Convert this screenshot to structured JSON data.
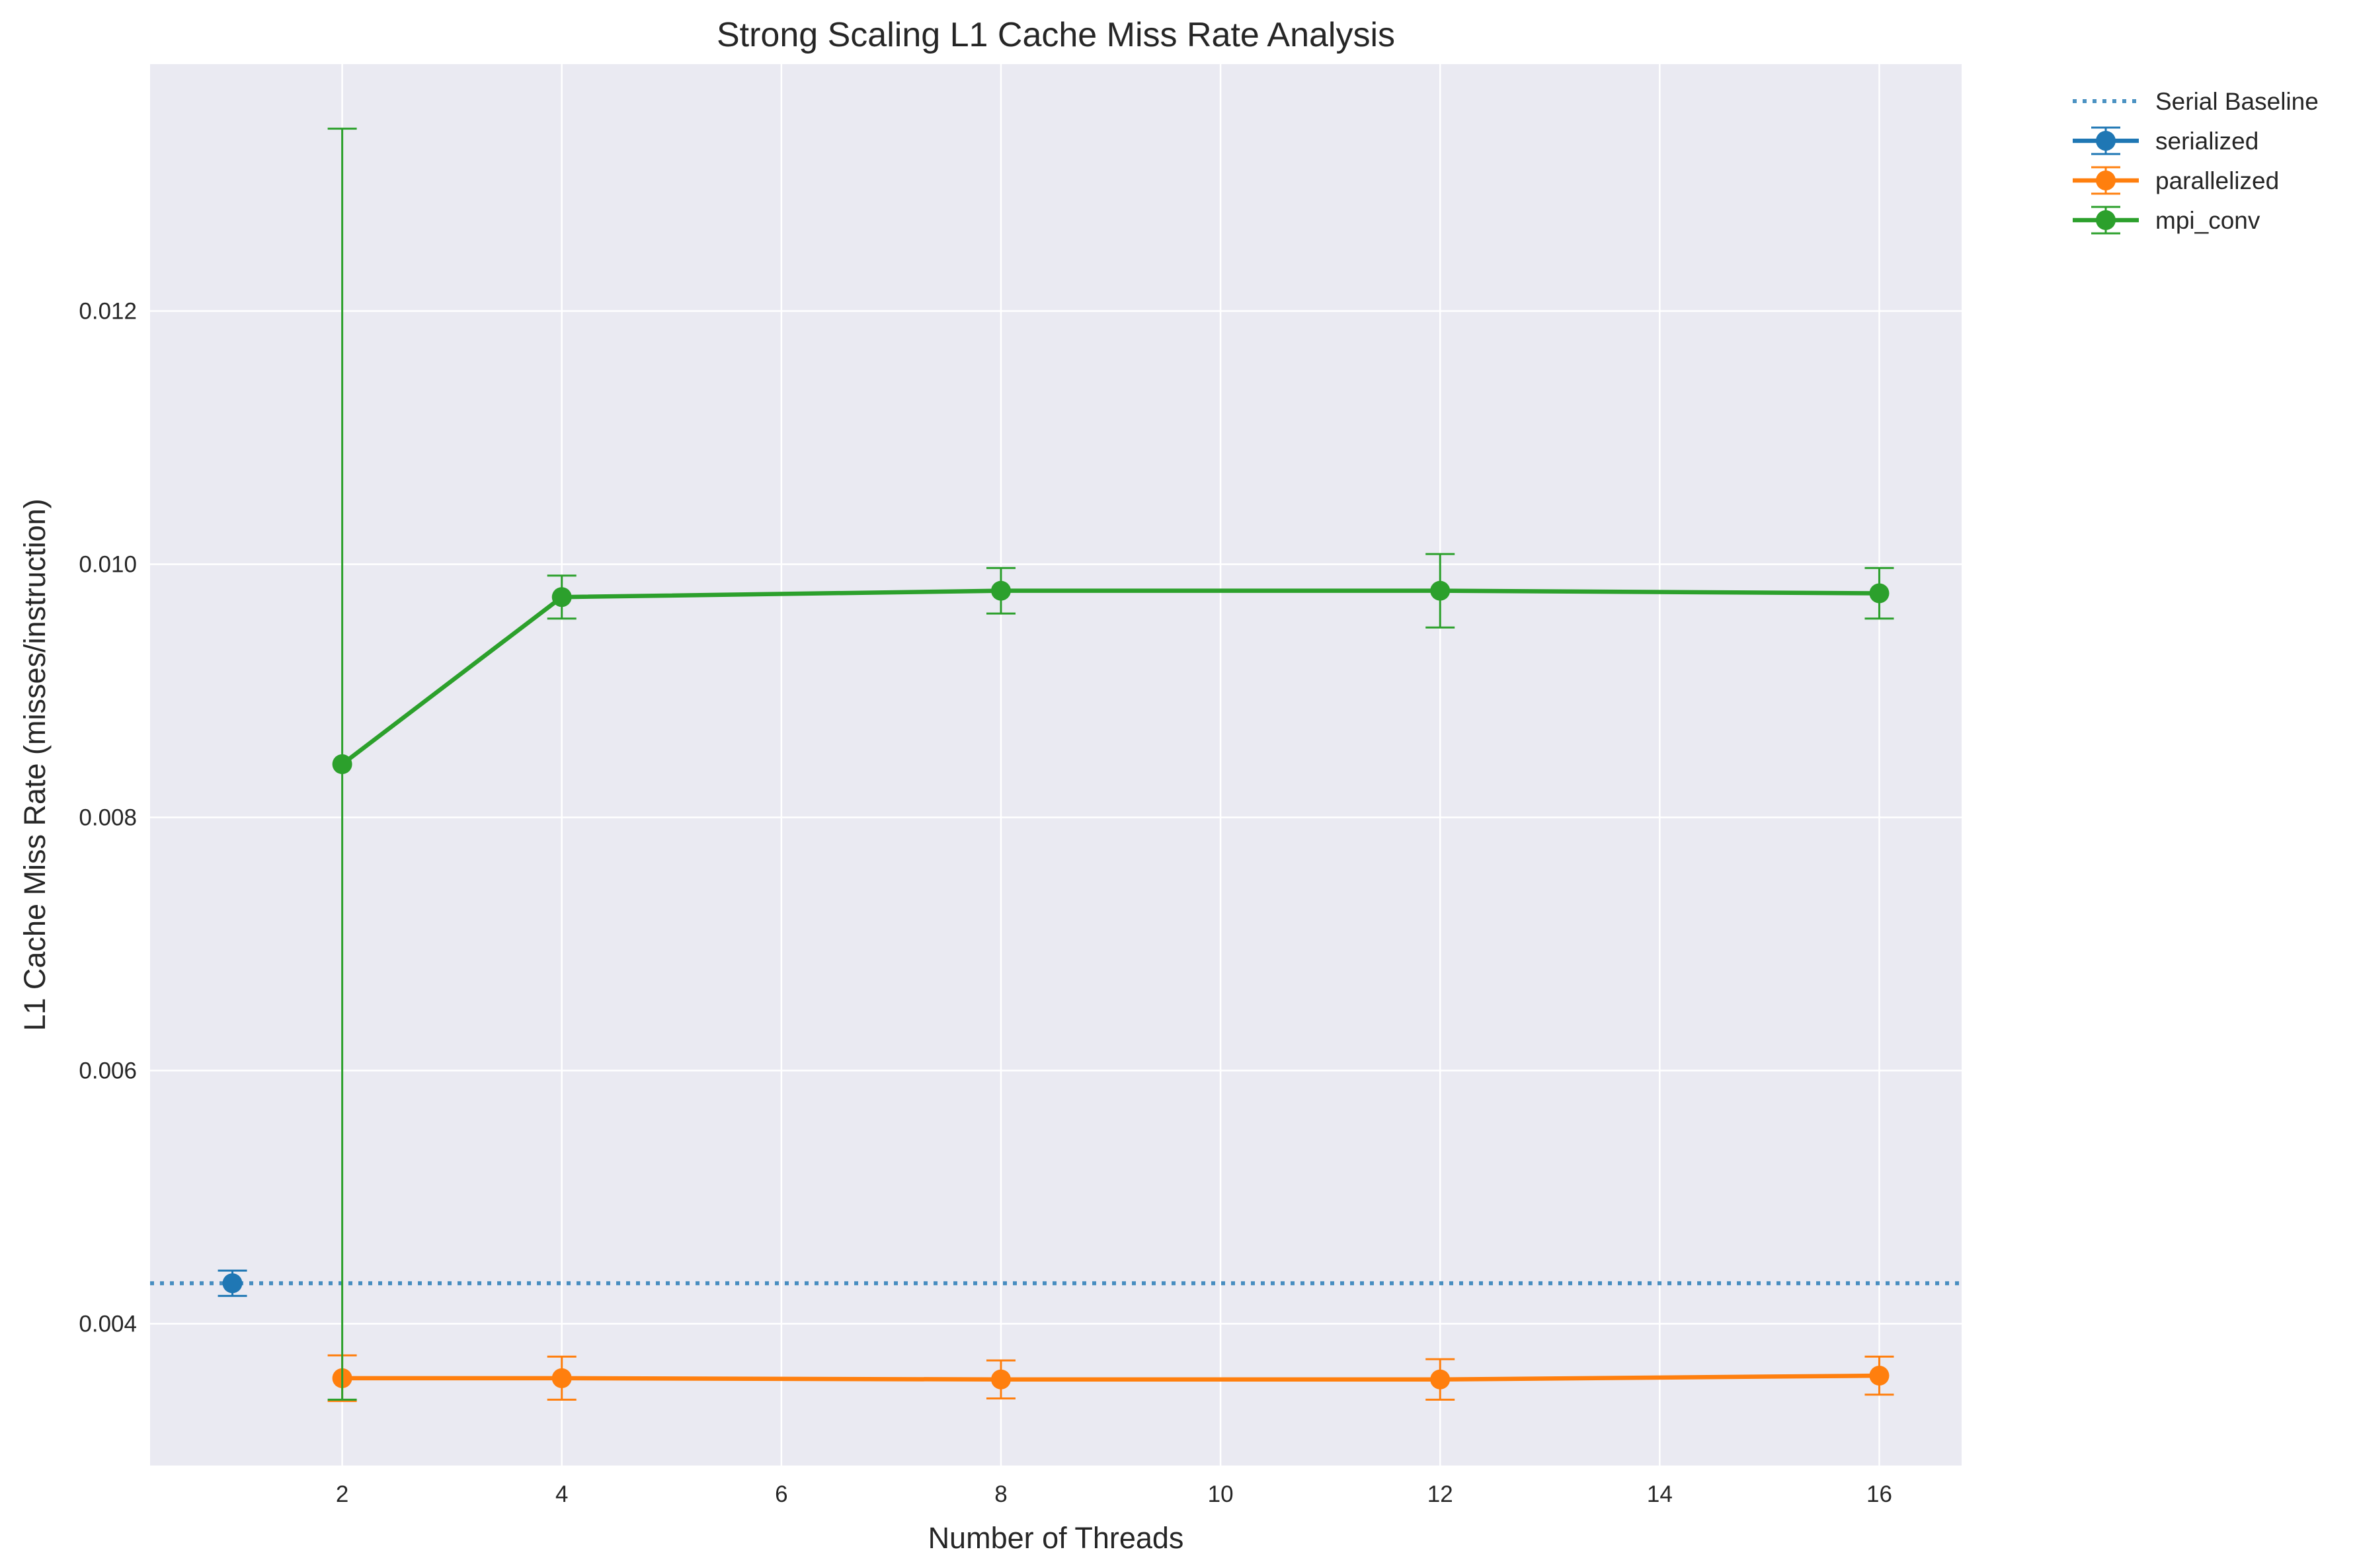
{
  "chart_data": {
    "type": "line",
    "title": "Strong Scaling L1 Cache Miss Rate Analysis",
    "xlabel": "Number of Threads",
    "ylabel": "L1 Cache Miss Rate (misses/instruction)",
    "xlim": [
      0.25,
      16.75
    ],
    "ylim": [
      0.00288,
      0.01395
    ],
    "xticks": [
      2,
      4,
      6,
      8,
      10,
      12,
      14,
      16
    ],
    "xtick_labels": [
      "2",
      "4",
      "6",
      "8",
      "10",
      "12",
      "14",
      "16"
    ],
    "yticks": [
      0.004,
      0.006,
      0.008,
      0.01,
      0.012
    ],
    "ytick_labels": [
      "0.004",
      "0.006",
      "0.008",
      "0.010",
      "0.012"
    ],
    "grid": true,
    "legend": "outside-top-right",
    "baseline": {
      "name": "Serial Baseline",
      "y": 0.00432,
      "color": "#1f77b4",
      "style": "dotted"
    },
    "series": [
      {
        "name": "serialized",
        "color": "#1f77b4",
        "x": [
          1
        ],
        "y": [
          0.00432
        ],
        "err": [
          0.0001
        ]
      },
      {
        "name": "parallelized",
        "color": "#ff7f0e",
        "x": [
          2,
          4,
          8,
          12,
          16
        ],
        "y": [
          0.00357,
          0.00357,
          0.00356,
          0.00356,
          0.00359
        ],
        "err": [
          0.00018,
          0.00017,
          0.00015,
          0.00016,
          0.00015
        ]
      },
      {
        "name": "mpi_conv",
        "color": "#2ca02c",
        "x": [
          2,
          4,
          8,
          12,
          16
        ],
        "y": [
          0.00842,
          0.00974,
          0.00979,
          0.00979,
          0.00977
        ],
        "err": [
          0.00502,
          0.00017,
          0.00018,
          0.00029,
          0.0002
        ]
      }
    ]
  }
}
